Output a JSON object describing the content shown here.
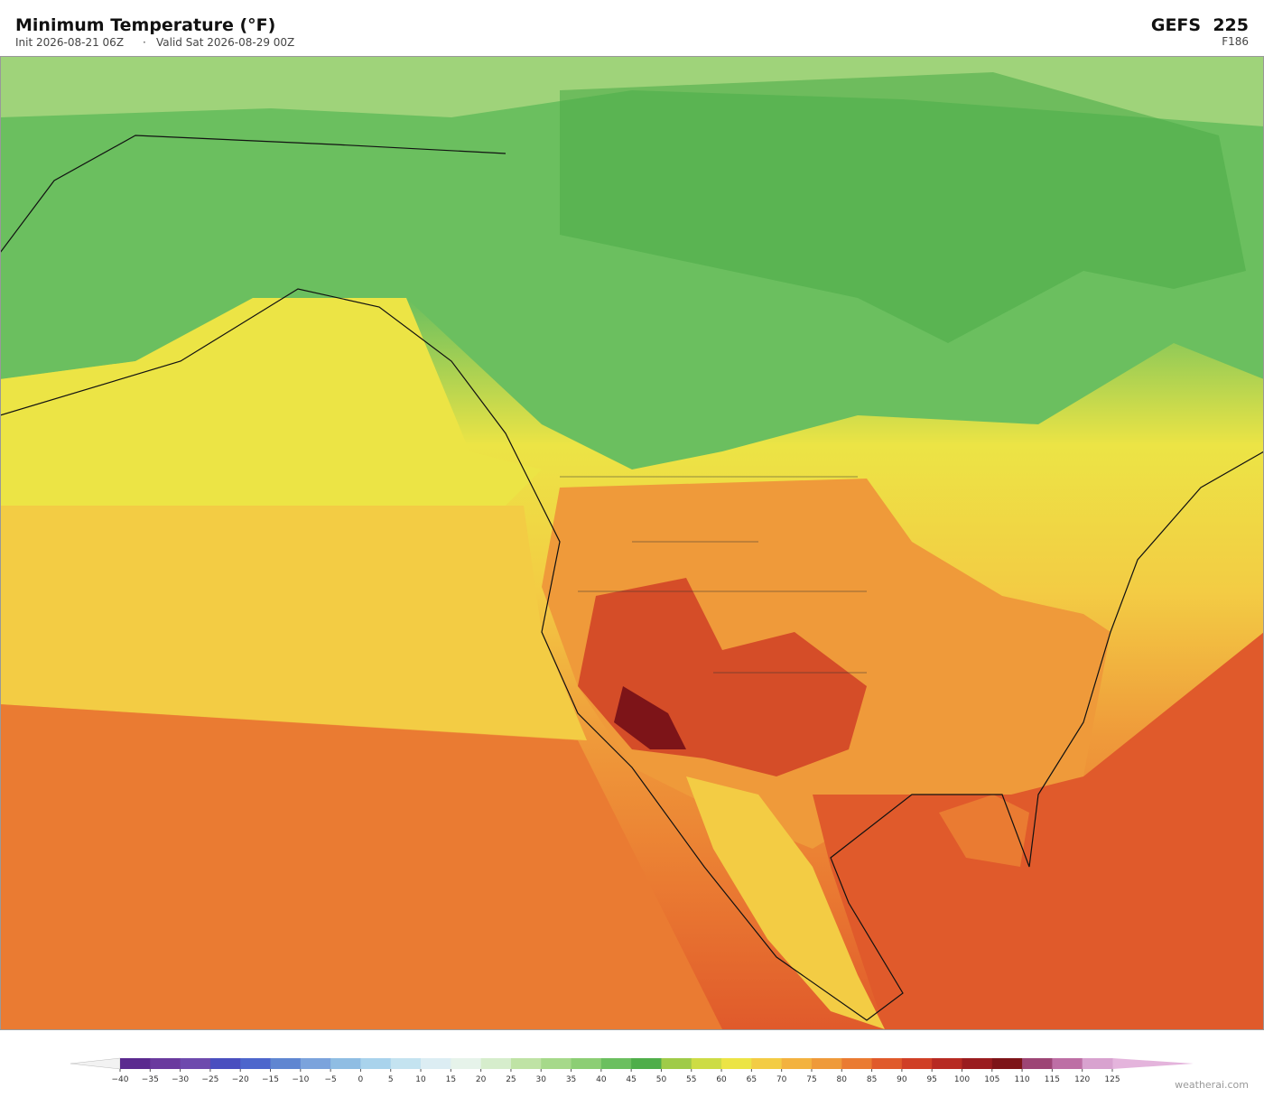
{
  "header": {
    "title": "Minimum Temperature  (°F)",
    "init": "Init 2026-08-21 06Z",
    "separator": "·",
    "valid": "Valid Sat 2026-08-29 00Z",
    "model": "GEFS  225",
    "forecast_hour": "F186"
  },
  "colorbar": {
    "ticks": [
      {
        "value": -40,
        "label": "−40"
      },
      {
        "value": -35,
        "label": "−35"
      },
      {
        "value": -30,
        "label": "−30"
      },
      {
        "value": -25,
        "label": "−25"
      },
      {
        "value": -20,
        "label": "−20"
      },
      {
        "value": -15,
        "label": "−15"
      },
      {
        "value": -10,
        "label": "−10"
      },
      {
        "value": -5,
        "label": "−5"
      },
      0,
      5,
      10,
      15,
      20,
      25,
      30,
      35,
      40,
      45,
      50,
      55,
      60,
      65,
      70,
      75,
      80,
      85,
      90,
      95,
      100,
      105,
      110,
      115,
      120,
      125
    ],
    "colors": [
      "#5b2a8f",
      "#6a3a9e",
      "#6e4aad",
      "#4a4fbf",
      "#4d66cc",
      "#5f86d1",
      "#7ba3dc",
      "#8fbde3",
      "#a9d3ec",
      "#c4e3f0",
      "#dcedf3",
      "#e6f3ea",
      "#d6edcc",
      "#bfe3a5",
      "#a6d98a",
      "#8cce74",
      "#6bbf5f",
      "#4fae4a",
      "#9fcb48",
      "#cddc45",
      "#ece445",
      "#f3cc44",
      "#f3b23f",
      "#ef9a3a",
      "#ea7b32",
      "#e05a2b",
      "#d03f26",
      "#b72a22",
      "#9a1c1f",
      "#7d1418",
      "#9d4575",
      "#bd6fa5",
      "#d8a2cf"
    ],
    "under_color": "#f2f2f2",
    "over_color": "#e4b4dc"
  },
  "footer": {
    "credit": "weatherai.com"
  }
}
